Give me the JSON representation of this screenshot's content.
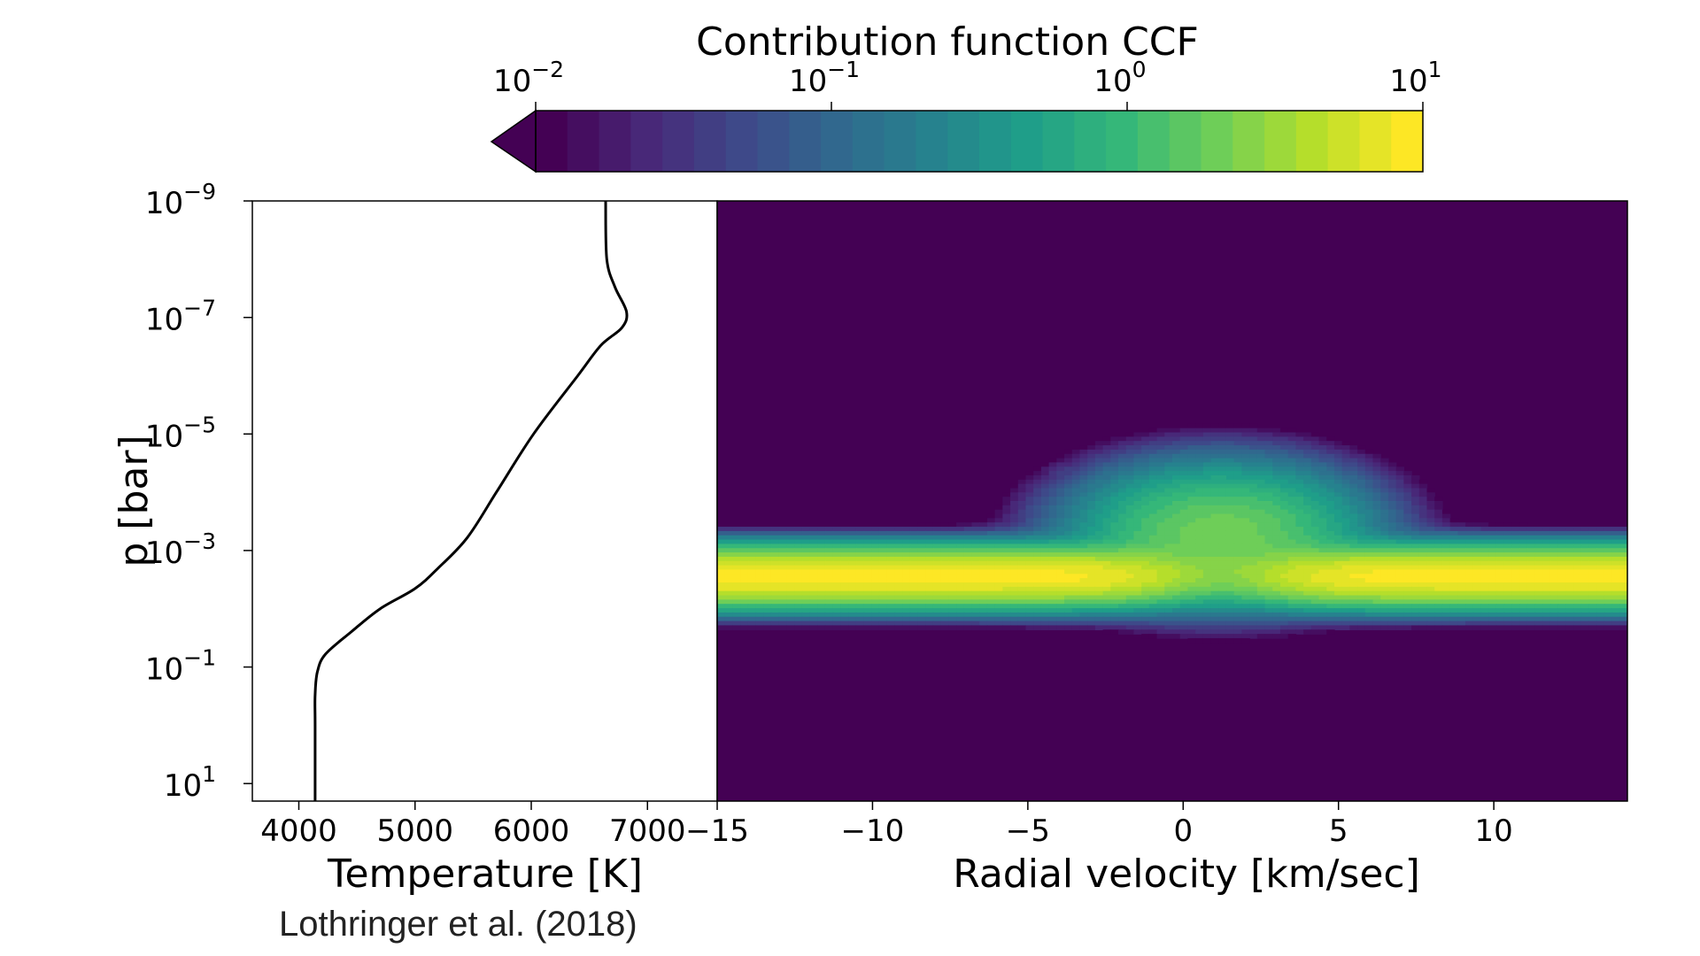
{
  "colors": {
    "viridis": [
      "#440154",
      "#482878",
      "#3e4989",
      "#31688e",
      "#26828e",
      "#1f9e89",
      "#35b779",
      "#6ece58",
      "#b5de2b",
      "#fde725"
    ],
    "frame": "#000000",
    "heat_background": "#440154"
  },
  "colorbar": {
    "label": "Contribution function CCF",
    "scale": "log",
    "range": [
      0.01,
      10
    ],
    "extend": "min",
    "ticks": [
      {
        "value": 0.01,
        "base": "10",
        "exp": "−2"
      },
      {
        "value": 0.1,
        "base": "10",
        "exp": "−1"
      },
      {
        "value": 1,
        "base": "10",
        "exp": "0"
      },
      {
        "value": 10,
        "base": "10",
        "exp": "1"
      }
    ],
    "levels": 28
  },
  "chart_data": [
    {
      "type": "line",
      "xlabel": "Temperature [K]",
      "ylabel": "p [bar]",
      "x_ticks": [
        4000,
        5000,
        6000,
        7000
      ],
      "xlim": [
        3600,
        7600
      ],
      "y_scale": "log",
      "y_inverted": true,
      "ylim": [
        1e-09,
        20
      ],
      "y_ticks": [
        {
          "value": 1e-09,
          "base": "10",
          "exp": "−9"
        },
        {
          "value": 1e-07,
          "base": "10",
          "exp": "−7"
        },
        {
          "value": 1e-05,
          "base": "10",
          "exp": "−5"
        },
        {
          "value": 0.001,
          "base": "10",
          "exp": "−3"
        },
        {
          "value": 0.1,
          "base": "10",
          "exp": "−1"
        },
        {
          "value": 10,
          "base": "10",
          "exp": "1"
        }
      ],
      "series": [
        {
          "points": [
            [
              6640,
              1e-09
            ],
            [
              6650,
              1e-08
            ],
            [
              6720,
              3e-08
            ],
            [
              6820,
              8e-08
            ],
            [
              6780,
              1.5e-07
            ],
            [
              6600,
              3e-07
            ],
            [
              6400,
              1e-06
            ],
            [
              6020,
              1e-05
            ],
            [
              5700,
              0.0001
            ],
            [
              5450,
              0.0006
            ],
            [
              5200,
              0.002
            ],
            [
              5000,
              0.0045
            ],
            [
              4700,
              0.01
            ],
            [
              4450,
              0.025
            ],
            [
              4230,
              0.06
            ],
            [
              4160,
              0.12
            ],
            [
              4140,
              0.3
            ],
            [
              4140,
              1
            ],
            [
              4140,
              20
            ]
          ]
        }
      ]
    },
    {
      "type": "heatmap",
      "xlabel": "Radial velocity [km/sec]",
      "x_ticks": [
        -15,
        -10,
        -5,
        0,
        5,
        10
      ],
      "xlim": [
        -15,
        14.3
      ],
      "y_scale": "log",
      "y_inverted": true,
      "ylim": [
        1e-09,
        20
      ],
      "value_scale": "log",
      "value_range": [
        0.01,
        10
      ],
      "band": {
        "peak_log10_pressure": -2.55,
        "peak_value": 10,
        "center_velocity": 1.2,
        "dip_half_width": 3.2
      }
    }
  ],
  "annotations": {
    "citation": "Lothringer et al. (2018)"
  }
}
